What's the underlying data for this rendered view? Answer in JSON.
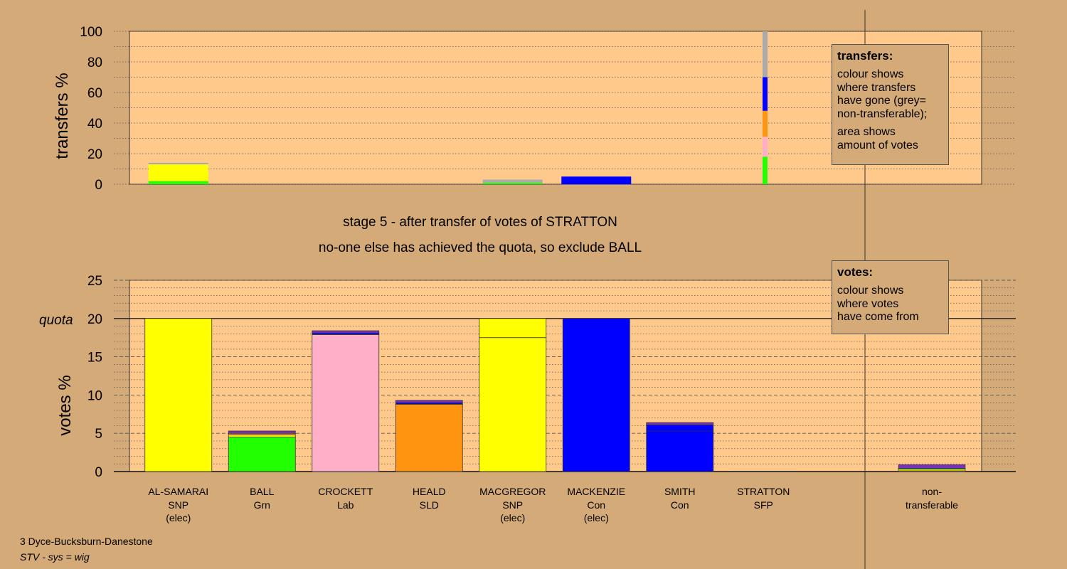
{
  "stage_line": "stage 5 - after transfer of votes of STRATTON",
  "status_line": "no-one else has achieved the quota, so exclude BALL",
  "footer": {
    "ward": "3 Dyce-Bucksburn-Danestone",
    "system": "STV - sys = wig"
  },
  "legend_transfers": {
    "title": "transfers:",
    "lines_1": [
      "colour shows",
      "where transfers",
      "have gone (grey=",
      "non-transferable);"
    ],
    "lines_2": [
      "area shows",
      "amount of votes"
    ]
  },
  "legend_votes": {
    "title": "votes:",
    "lines": [
      "colour shows",
      "where votes",
      "have come from"
    ]
  },
  "colors": {
    "background": "#d4aa78",
    "plot_background": "#ffc98b",
    "SNP": "#ffff00",
    "Grn": "#22ff00",
    "Lab": "#ffb0c8",
    "SLD": "#ff9410",
    "Con": "#0000ff",
    "SFP": "#7b2fbe",
    "non_transferable": "#aaaaaa"
  },
  "chart_data": [
    {
      "type": "bar",
      "name": "transfers",
      "ylabel": "transfers %",
      "ylim": [
        0,
        100
      ],
      "yticks": [
        0,
        20,
        40,
        60,
        80,
        100
      ],
      "bars": [
        {
          "candidate": "AL-SAMARAI",
          "share": 14,
          "segments": [
            {
              "party": "Grn",
              "value": 2
            },
            {
              "party": "SNP",
              "value": 11
            },
            {
              "party": "non_transferable",
              "value": 1
            }
          ]
        },
        {
          "candidate": "MACGREGOR",
          "share": 3,
          "segments": [
            {
              "party": "Grn",
              "value": 1
            },
            {
              "party": "non_transferable",
              "value": 2
            }
          ]
        },
        {
          "candidate": "MACKENZIE",
          "share": 5,
          "segments": [
            {
              "party": "Con",
              "value": 5
            }
          ]
        }
      ],
      "stratton_split": [
        {
          "party": "Grn",
          "value": 18
        },
        {
          "party": "Lab",
          "value": 13
        },
        {
          "party": "SLD",
          "value": 17
        },
        {
          "party": "Con",
          "value": 22
        },
        {
          "party": "non_transferable",
          "value": 30
        }
      ]
    },
    {
      "type": "bar",
      "name": "votes",
      "ylabel": "votes %",
      "ylim": [
        0,
        25
      ],
      "yticks": [
        0,
        5,
        10,
        15,
        20,
        25
      ],
      "quota": 20,
      "quota_label": "quota",
      "categories": [
        {
          "name": "AL-SAMARAI",
          "party": "SNP",
          "elected": "(elec)"
        },
        {
          "name": "BALL",
          "party": "Grn",
          "elected": ""
        },
        {
          "name": "CROCKETT",
          "party": "Lab",
          "elected": ""
        },
        {
          "name": "HEALD",
          "party": "SLD",
          "elected": ""
        },
        {
          "name": "MACGREGOR",
          "party": "SNP",
          "elected": "(elec)"
        },
        {
          "name": "MACKENZIE",
          "party": "Con",
          "elected": "(elec)"
        },
        {
          "name": "SMITH",
          "party": "Con",
          "elected": ""
        },
        {
          "name": "STRATTON",
          "party": "SFP",
          "elected": ""
        }
      ],
      "nontransferable_label": [
        "non-",
        "transferable"
      ],
      "stacks": [
        [
          {
            "party": "SNP",
            "value": 20
          }
        ],
        [
          {
            "party": "Grn",
            "value": 4.5
          },
          {
            "party": "SNP",
            "value": 0.3
          },
          {
            "party": "SLD",
            "value": 0.2
          },
          {
            "party": "SFP",
            "value": 0.3
          }
        ],
        [
          {
            "party": "Lab",
            "value": 17.9
          },
          {
            "party": "Con",
            "value": 0.2
          },
          {
            "party": "SFP",
            "value": 0.3
          }
        ],
        [
          {
            "party": "SLD",
            "value": 8.8
          },
          {
            "party": "Con",
            "value": 0.2
          },
          {
            "party": "SFP",
            "value": 0.3
          }
        ],
        [
          {
            "party": "SNP",
            "value": 17.5
          },
          {
            "party": "SNP",
            "value": 2.5
          }
        ],
        [
          {
            "party": "Con",
            "value": 20
          }
        ],
        [
          {
            "party": "Con",
            "value": 5.3
          },
          {
            "party": "Con",
            "value": 0.8
          },
          {
            "party": "SFP",
            "value": 0.3
          }
        ],
        [
          {
            "party": "SFP",
            "value": 0.05
          }
        ]
      ],
      "nontransferable_stack": [
        {
          "party": "Lab",
          "value": 0.1
        },
        {
          "party": "SNP",
          "value": 0.2
        },
        {
          "party": "Grn",
          "value": 0.1
        },
        {
          "party": "SFP",
          "value": 0.5
        }
      ]
    }
  ]
}
